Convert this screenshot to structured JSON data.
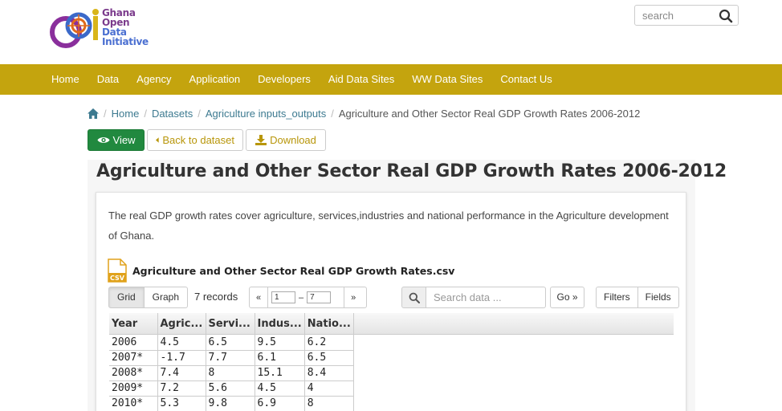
{
  "logo": {
    "lines": [
      "Ghana",
      "Open",
      "Data",
      "Initiative"
    ]
  },
  "search": {
    "placeholder": "search"
  },
  "nav": {
    "items": [
      "Home",
      "Data",
      "Agency",
      "Application",
      "Developers",
      "Aid Data Sites",
      "WW Data Sites",
      "Contact Us"
    ]
  },
  "breadcrumb": {
    "items": [
      "Home",
      "Datasets",
      "Agriculture inputs_outputs"
    ],
    "current": "Agriculture and Other Sector Real GDP Growth Rates 2006-2012"
  },
  "actions": {
    "view": "View",
    "back": "Back to dataset",
    "download": "Download"
  },
  "resource": {
    "title": "Agriculture and Other Sector Real GDP Growth Rates 2006-2012",
    "description": "The real GDP growth rates cover agriculture, services,industries and national performance in the Agriculture development of Ghana.",
    "file_name": "Agriculture and Other Sector Real GDP Growth Rates.csv",
    "file_badge": "CSV"
  },
  "explorer": {
    "views": [
      "Grid",
      "Graph"
    ],
    "records": "7 records",
    "pager": {
      "prev": "«",
      "from": "1",
      "sep": "–",
      "to": "7",
      "next": "»"
    },
    "search_placeholder": "Search data ...",
    "go": "Go »",
    "filters": "Filters",
    "fields": "Fields"
  },
  "grid": {
    "columns": [
      "Year",
      "Agric...",
      "Servi...",
      "Indus...",
      "Natio..."
    ],
    "rows": [
      [
        "2006",
        "4.5",
        "6.5",
        "9.5",
        "6.2"
      ],
      [
        "2007*",
        "-1.7",
        "7.7",
        "6.1",
        "6.5"
      ],
      [
        "2008*",
        "7.4",
        "8",
        "15.1",
        "8.4"
      ],
      [
        "2009*",
        "7.2",
        "5.6",
        "4.5",
        "4"
      ],
      [
        "2010*",
        "5.3",
        "9.8",
        "6.9",
        "8"
      ]
    ]
  }
}
